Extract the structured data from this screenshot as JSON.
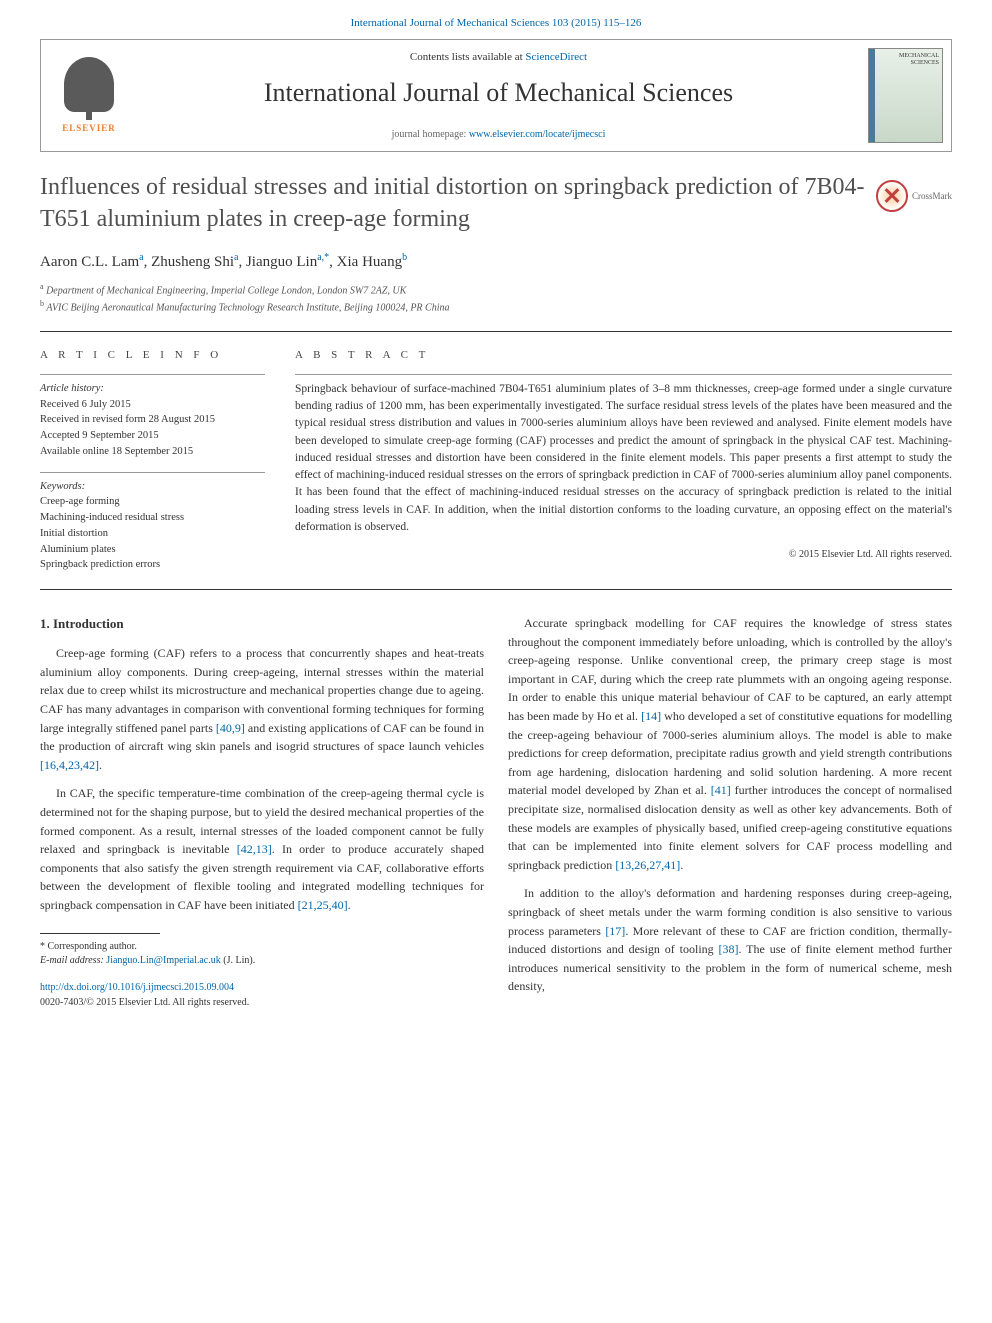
{
  "journal_ref": "International Journal of Mechanical Sciences 103 (2015) 115–126",
  "header": {
    "contents_prefix": "Contents lists available at ",
    "contents_link": "ScienceDirect",
    "journal_name": "International Journal of Mechanical Sciences",
    "homepage_prefix": "journal homepage: ",
    "homepage_url": "www.elsevier.com/locate/ijmecsci",
    "elsevier_label": "ELSEVIER",
    "cover_text": "MECHANICAL SCIENCES"
  },
  "crossmark_label": "CrossMark",
  "article": {
    "title": "Influences of residual stresses and initial distortion on springback prediction of 7B04-T651 aluminium plates in creep-age forming",
    "authors_html": "Aaron C.L. Lam",
    "authors": [
      {
        "name": "Aaron C.L. Lam",
        "aff": "a"
      },
      {
        "name": "Zhusheng Shi",
        "aff": "a"
      },
      {
        "name": "Jianguo Lin",
        "aff": "a",
        "corr": true
      },
      {
        "name": "Xia Huang",
        "aff": "b"
      }
    ],
    "affiliations": [
      {
        "marker": "a",
        "text": "Department of Mechanical Engineering, Imperial College London, London SW7 2AZ, UK"
      },
      {
        "marker": "b",
        "text": "AVIC Beijing Aeronautical Manufacturing Technology Research Institute, Beijing 100024, PR China"
      }
    ]
  },
  "article_info_heading": "A R T I C L E  I N F O",
  "abstract_heading": "A B S T R A C T",
  "history": {
    "label": "Article history:",
    "received": "Received 6 July 2015",
    "revised": "Received in revised form 28 August 2015",
    "accepted": "Accepted 9 September 2015",
    "online": "Available online 18 September 2015"
  },
  "keywords": {
    "label": "Keywords:",
    "items": [
      "Creep-age forming",
      "Machining-induced residual stress",
      "Initial distortion",
      "Aluminium plates",
      "Springback prediction errors"
    ]
  },
  "abstract_text": "Springback behaviour of surface-machined 7B04-T651 aluminium plates of 3–8 mm thicknesses, creep-age formed under a single curvature bending radius of 1200 mm, has been experimentally investigated. The surface residual stress levels of the plates have been measured and the typical residual stress distribution and values in 7000-series aluminium alloys have been reviewed and analysed. Finite element models have been developed to simulate creep-age forming (CAF) processes and predict the amount of springback in the physical CAF test. Machining-induced residual stresses and distortion have been considered in the finite element models. This paper presents a first attempt to study the effect of machining-induced residual stresses on the errors of springback prediction in CAF of 7000-series aluminium alloy panel components. It has been found that the effect of machining-induced residual stresses on the accuracy of springback prediction is related to the initial loading stress levels in CAF. In addition, when the initial distortion conforms to the loading curvature, an opposing effect on the material's deformation is observed.",
  "copyright": "© 2015 Elsevier Ltd. All rights reserved.",
  "body": {
    "section_heading": "1.  Introduction",
    "left_paragraphs": [
      "Creep-age forming (CAF) refers to a process that concurrently shapes and heat-treats aluminium alloy components. During creep-ageing, internal stresses within the material relax due to creep whilst its microstructure and mechanical properties change due to ageing. CAF has many advantages in comparison with conventional forming techniques for forming large integrally stiffened panel parts [40,9] and existing applications of CAF can be found in the production of aircraft wing skin panels and isogrid structures of space launch vehicles [16,4,23,42].",
      "In CAF, the specific temperature-time combination of the creep-ageing thermal cycle is determined not for the shaping purpose, but to yield the desired mechanical properties of the formed component. As a result, internal stresses of the loaded component cannot be fully relaxed and springback is inevitable [42,13]. In order to produce accurately shaped components that also satisfy the given strength requirement via CAF, collaborative efforts between the development of flexible tooling and integrated modelling techniques for springback compensation in CAF have been initiated [21,25,40]."
    ],
    "right_paragraphs": [
      "Accurate springback modelling for CAF requires the knowledge of stress states throughout the component immediately before unloading, which is controlled by the alloy's creep-ageing response. Unlike conventional creep, the primary creep stage is most important in CAF, during which the creep rate plummets with an ongoing ageing response. In order to enable this unique material behaviour of CAF to be captured, an early attempt has been made by Ho et al. [14] who developed a set of constitutive equations for modelling the creep-ageing behaviour of 7000-series aluminium alloys. The model is able to make predictions for creep deformation, precipitate radius growth and yield strength contributions from age hardening, dislocation hardening and solid solution hardening. A more recent material model developed by Zhan et al. [41] further introduces the concept of normalised precipitate size, normalised dislocation density as well as other key advancements. Both of these models are examples of physically based, unified creep-ageing constitutive equations that can be implemented into finite element solvers for CAF process modelling and springback prediction [13,26,27,41].",
      "In addition to the alloy's deformation and hardening responses during creep-ageing, springback of sheet metals under the warm forming condition is also sensitive to various process parameters [17]. More relevant of these to CAF are friction condition, thermally-induced distortions and design of tooling [38]. The use of finite element method further introduces numerical sensitivity to the problem in the form of numerical scheme, mesh density,"
    ]
  },
  "footnote": {
    "corr_label": "Corresponding author.",
    "email_label": "E-mail address:",
    "email": "Jianguo.Lin@Imperial.ac.uk",
    "email_suffix": "(J. Lin)."
  },
  "doi": {
    "url": "http://dx.doi.org/10.1016/j.ijmecsci.2015.09.004",
    "issn_line": "0020-7403/© 2015 Elsevier Ltd. All rights reserved."
  },
  "ref_color": "#0066aa"
}
